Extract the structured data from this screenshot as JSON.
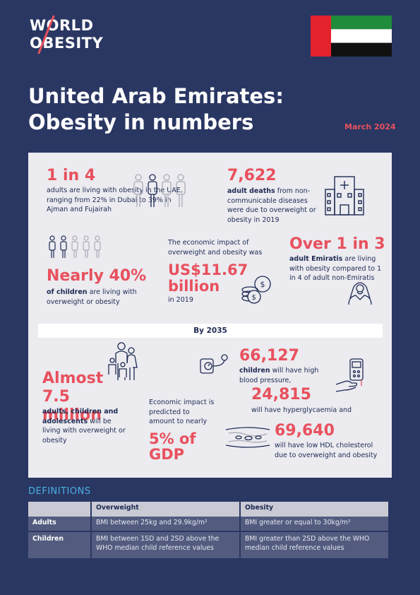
{
  "logo": {
    "line1": "WORLD",
    "line2": "OBESITY"
  },
  "title": "United Arab Emirates: Obesity in numbers",
  "date": "March 2024",
  "colors": {
    "navy": "#2a3763",
    "accent": "#e8515d",
    "panel": "#ebebf0",
    "definitions": "#4ab0e4"
  },
  "stats": {
    "s1": {
      "big": "1 in 4",
      "text": "adults are living with obesity in the UAE, ranging from 22% in Dubai to 39% in Ajman and Fujairah"
    },
    "s2": {
      "big": "7,622",
      "bold": "adult deaths",
      "text": " from non-communicable diseases were due to overweight or obesity in 2019"
    },
    "s3": {
      "big": "Nearly 40%",
      "bold": "of children",
      "text": " are living with overweight or obesity"
    },
    "s4": {
      "pre": "The economic impact of overweight and obesity was",
      "big": "US$11.67 billion",
      "post": "in 2019"
    },
    "s5": {
      "big": "Over 1 in 3",
      "bold": "adult Emiratis",
      "text": " are living with obesity compared to 1 in 4 of adult non-Emiratis"
    }
  },
  "by2035": {
    "label": "By 2035",
    "almost": {
      "big": "Almost 7.5 million",
      "bold": "adults, children and adolescents",
      "text": " will be living with overweight or obesity"
    },
    "gdp": {
      "pre": "Economic impact is predicted to amount to nearly",
      "big": "5% of GDP"
    },
    "bp": {
      "big": "66,127",
      "bold": "children",
      "text": " will have high blood pressure,"
    },
    "hyper": {
      "big": "24,815",
      "text": "will have hyperglycaemia and"
    },
    "hdl": {
      "big": "69,640",
      "text": "will have low HDL cholesterol due to overweight and obesity"
    }
  },
  "definitions": {
    "title": "DEFINITIONS",
    "headers": [
      "",
      "Overweight",
      "Obesity"
    ],
    "rows": [
      [
        "Adults",
        "BMI between 25kg and 29.9kg/m²",
        "BMI greater or equal to 30kg/m²"
      ],
      [
        "Children",
        "BMI between 1SD and 2SD above the WHO median child reference values",
        "BMI greater than 2SD above the WHO median child reference values"
      ]
    ]
  },
  "icons": [
    "people-icon",
    "hospital-icon",
    "children-icon",
    "coins-icon",
    "emirati-man-icon",
    "family-icon",
    "blood-pressure-icon",
    "glucose-meter-icon",
    "artery-icon"
  ]
}
